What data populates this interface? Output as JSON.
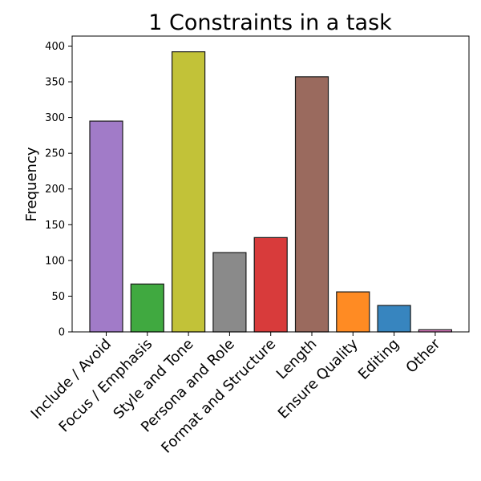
{
  "chart_data": {
    "type": "bar",
    "title": "1 Constraints in a task",
    "xlabel": "",
    "ylabel": "Frequency",
    "ylim": [
      0,
      414
    ],
    "yticks": [
      0,
      50,
      100,
      150,
      200,
      250,
      300,
      350,
      400
    ],
    "grid": false,
    "categories": [
      "Include / Avoid",
      "Focus / Emphasis",
      "Style and Tone",
      "Persona and Role",
      "Format and Structure",
      "Length",
      "Ensure Quality",
      "Editing",
      "Other"
    ],
    "values": [
      295,
      67,
      392,
      111,
      132,
      357,
      56,
      37,
      3
    ],
    "colors": [
      "#a17bc8",
      "#40a940",
      "#c2c238",
      "#8a8a8a",
      "#d83b3b",
      "#9a6a5e",
      "#ff8b23",
      "#3785bf",
      "#e07bc2"
    ]
  }
}
